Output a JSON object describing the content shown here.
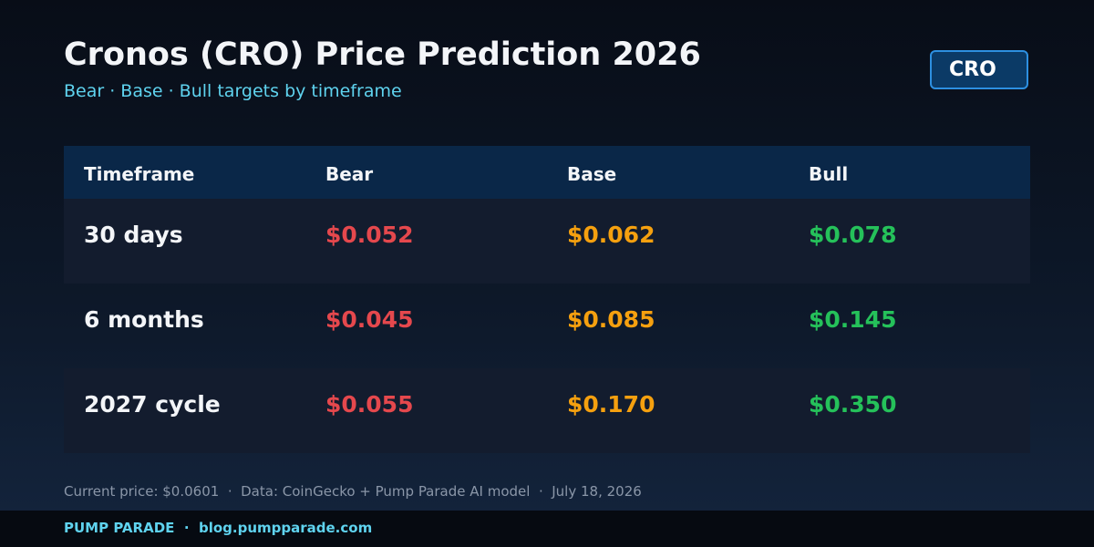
{
  "header": {
    "title": "Cronos (CRO) Price Prediction 2026",
    "subtitle": "Bear · Base · Bull targets by timeframe",
    "badge": "CRO"
  },
  "table": {
    "columns": [
      "Timeframe",
      "Bear",
      "Base",
      "Bull"
    ],
    "rows": [
      [
        "30 days",
        "$0.052",
        "$0.062",
        "$0.078"
      ],
      [
        "6 months",
        "$0.045",
        "$0.085",
        "$0.145"
      ],
      [
        "2027 cycle",
        "$0.055",
        "$0.170",
        "$0.350"
      ]
    ]
  },
  "footer": {
    "note": "Current price: $0.0601  ·  Data: CoinGecko + Pump Parade AI model  ·  July 18, 2026"
  },
  "footer_bar": {
    "brand": "PUMP PARADE  ·  blog.pumpparade.com"
  }
}
